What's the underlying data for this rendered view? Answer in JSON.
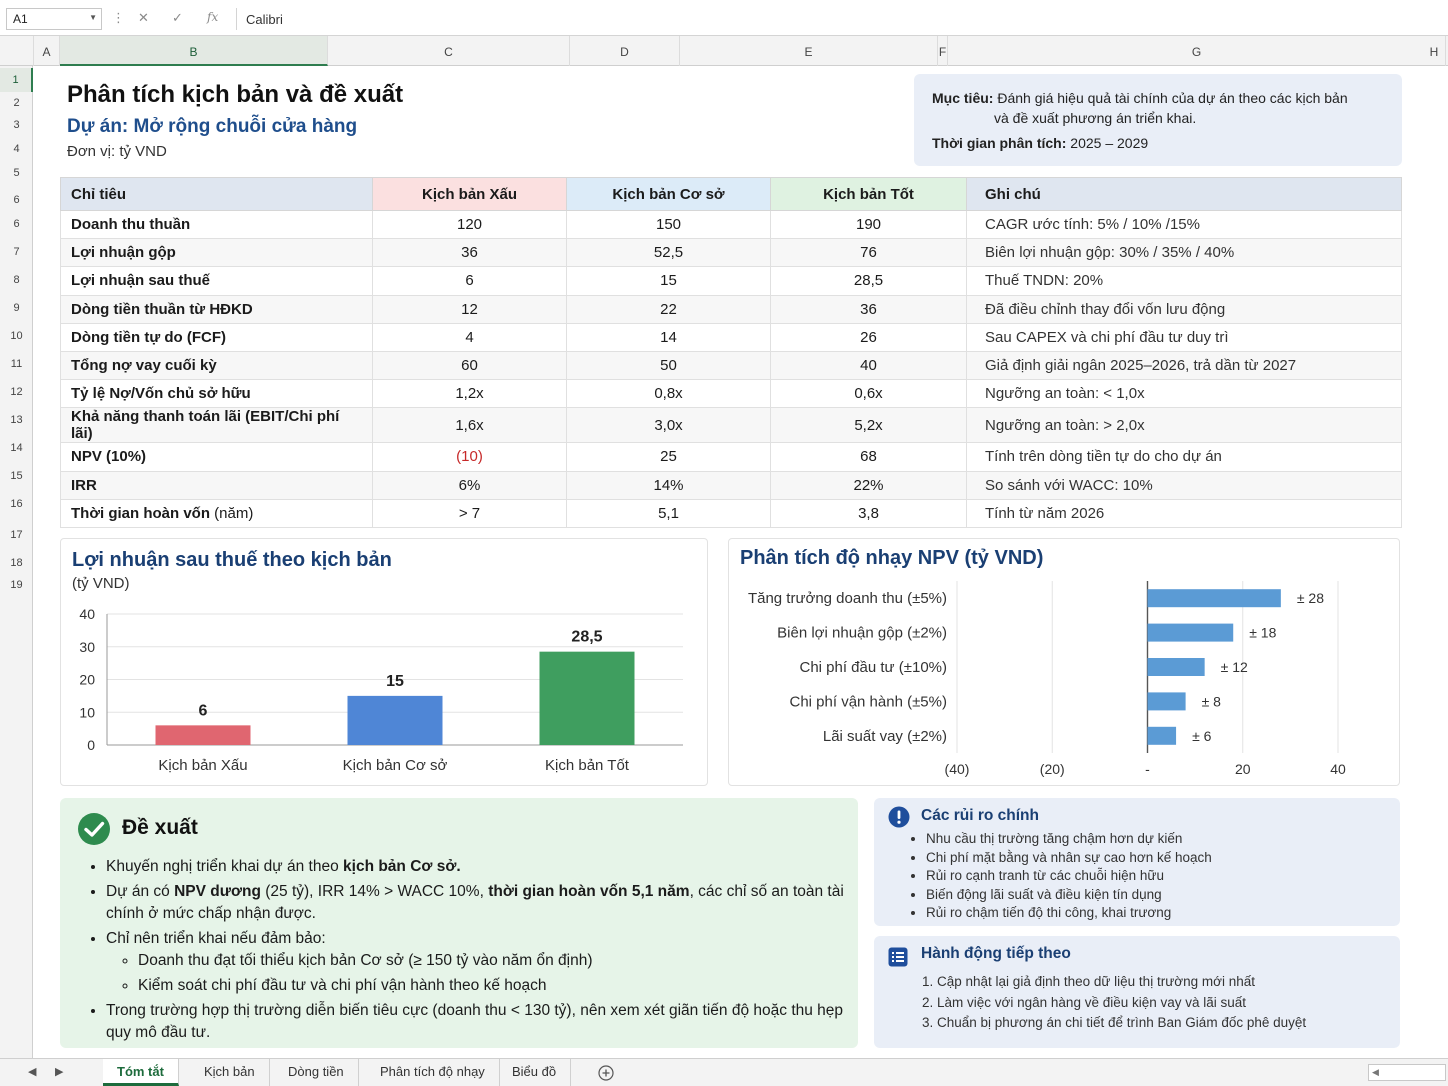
{
  "formula_bar": {
    "cell_ref": "A1",
    "fx": "fx",
    "value": "Calibri"
  },
  "columns": [
    "A",
    "B",
    "C",
    "D",
    "E",
    "F",
    "G",
    "H"
  ],
  "rows": [
    "1",
    "2",
    "3",
    "4",
    "5",
    "6",
    "6",
    "7",
    "8",
    "9",
    "10",
    "11",
    "12",
    "13",
    "14",
    "15",
    "16",
    "17",
    "18",
    "19"
  ],
  "header": {
    "title": "Phân tích kịch bản và đề xuất",
    "subtitle": "Dự án: Mở rộng chuỗi cửa hàng",
    "unit": "Đơn vị: tỷ VND"
  },
  "objective": {
    "label": "Mục tiêu:",
    "text": "Đánh giá hiệu quả tài chính của dự án theo các kịch bản",
    "text2": "và đề xuất phương án triển khai.",
    "period_label": "Thời gian phân tích:",
    "period": "2025 – 2029"
  },
  "table": {
    "headers": [
      "Chỉ tiêu",
      "Kịch bản Xấu",
      "Kịch bản Cơ sở",
      "Kịch bản Tốt",
      "Ghi chú"
    ],
    "header_colors": [
      "#dfe6f0",
      "#fbe0e0",
      "#dcebf8",
      "#dff2e1",
      "#dfe6f0"
    ],
    "rows": [
      {
        "label": "Doanh thu thuần",
        "bad": "120",
        "base": "150",
        "good": "190",
        "note": "CAGR ước tính: 5% / 10% /15%"
      },
      {
        "label": "Lợi nhuận gộp",
        "bad": "36",
        "base": "52,5",
        "good": "76",
        "note": "Biên lợi nhuận gộp: 30% / 35% / 40%"
      },
      {
        "label": "Lợi nhuận sau thuế",
        "bad": "6",
        "base": "15",
        "good": "28,5",
        "note": "Thuế TNDN: 20%"
      },
      {
        "label": "Dòng tiền thuần từ HĐKD",
        "bad": "12",
        "base": "22",
        "good": "36",
        "note": "Đã điều chỉnh thay đổi vốn lưu động"
      },
      {
        "label": "Dòng tiền tự do (FCF)",
        "bad": "4",
        "base": "14",
        "good": "26",
        "note": "Sau CAPEX và chi phí đầu tư duy trì"
      },
      {
        "label": "Tổng nợ vay cuối kỳ",
        "bad": "60",
        "base": "50",
        "good": "40",
        "note": "Giả định giải ngân 2025–2026, trả dần từ 2027"
      },
      {
        "label": "Tỷ lệ Nợ/Vốn chủ sở hữu",
        "bad": "1,2x",
        "base": "0,8x",
        "good": "0,6x",
        "note": "Ngưỡng an toàn: < 1,0x"
      },
      {
        "label": "Khả năng thanh toán lãi (EBIT/Chi phí lãi)",
        "bad": "1,6x",
        "base": "3,0x",
        "good": "5,2x",
        "note": "Ngưỡng an toàn: > 2,0x"
      },
      {
        "label": "NPV (10%)",
        "bad": "(10)",
        "base": "25",
        "good": "68",
        "note": "Tính trên dòng tiền tự do cho dự án"
      },
      {
        "label": "IRR",
        "bad": "6%",
        "base": "14%",
        "good": "22%",
        "note": "So sánh với WACC: 10%"
      },
      {
        "label": "Thời gian hoàn vốn",
        "label_suffix": " (năm)",
        "bad": "> 7",
        "base": "5,1",
        "good": "3,8",
        "note": "Tính từ năm 2026"
      }
    ]
  },
  "chart_data": [
    {
      "type": "bar",
      "title": "Lợi nhuận sau thuế theo kịch bản",
      "subtitle": "(tỷ VND)",
      "categories": [
        "Kịch bản Xấu",
        "Kịch bản Cơ sở",
        "Kịch bản Tốt"
      ],
      "values": [
        6,
        15,
        28.5
      ],
      "value_labels": [
        "6",
        "15",
        "28,5"
      ],
      "colors": [
        "#e06670",
        "#4f86d6",
        "#3f9e5f"
      ],
      "yticks": [
        "0",
        "10",
        "20",
        "30",
        "40"
      ],
      "ylim": [
        0,
        40
      ],
      "grid": true
    },
    {
      "type": "bar",
      "orientation": "horizontal",
      "title": "Phân tích độ nhạy NPV (tỷ VND)",
      "categories": [
        "Tăng trưởng doanh thu (±5%)",
        "Biên lợi nhuận gộp (±2%)",
        "Chi phí đầu tư (±10%)",
        "Chi phí vận hành (±5%)",
        "Lãi suất vay (±2%)"
      ],
      "values": [
        28,
        18,
        12,
        8,
        6
      ],
      "value_labels": [
        "± 28",
        "± 18",
        "± 12",
        "± 8",
        "± 6"
      ],
      "color": "#5b9bd5",
      "xticks": [
        "(40)",
        "(20)",
        "-",
        "20",
        "40"
      ],
      "xlim": [
        -40,
        40
      ],
      "grid": true
    }
  ],
  "recommendation": {
    "title": "Đề xuất",
    "b1_pre": "Khuyến nghị triển khai dự án theo ",
    "b1_bold": "kịch bản Cơ sở.",
    "b2_pre": "Dự án có ",
    "b2_bold1": "NPV dương",
    "b2_mid": " (25 tỷ), IRR 14% > WACC 10%, ",
    "b2_bold2": "thời gian hoàn vốn 5,1 năm",
    "b2_post": ", các chỉ số an toàn tài chính ở mức chấp nhận được.",
    "b3": "Chỉ nên triển khai nếu đảm bảo:",
    "b3_sub1": "Doanh thu đạt tối thiểu kịch bản Cơ sở (≥ 150 tỷ vào năm ổn định)",
    "b3_sub2": "Kiểm soát chi phí đầu tư và chi phí vận hành theo kế hoạch",
    "b4": "Trong trường hợp thị trường diễn biến tiêu cực (doanh thu < 130 tỷ), nên xem xét giãn tiến độ hoặc thu hẹp quy mô đầu tư."
  },
  "risks": {
    "title": "Các rủi ro chính",
    "items": [
      "Nhu cầu thị trường tăng chậm hơn dự kiến",
      "Chi phí mặt bằng và nhân sự cao hơn kế hoạch",
      "Rủi ro cạnh tranh từ các chuỗi hiện hữu",
      "Biến động lãi suất và điều kiện tín dụng",
      "Rủi ro chậm tiến độ thi công, khai trương"
    ]
  },
  "actions": {
    "title": "Hành động tiếp theo",
    "items": [
      "1.  Cập nhật lại giả định theo dữ liệu thị trường mới nhất",
      "2.  Làm việc với ngân hàng về điều kiện vay và lãi suất",
      "3.  Chuẩn bị phương án chi tiết để trình Ban Giám đốc phê duyệt"
    ]
  },
  "tabs": [
    "Tóm tắt",
    "Kịch bản",
    "Dòng tiền",
    "Phân tích độ nhạy",
    "Biểu đồ"
  ],
  "accent": "#1d6b3c"
}
